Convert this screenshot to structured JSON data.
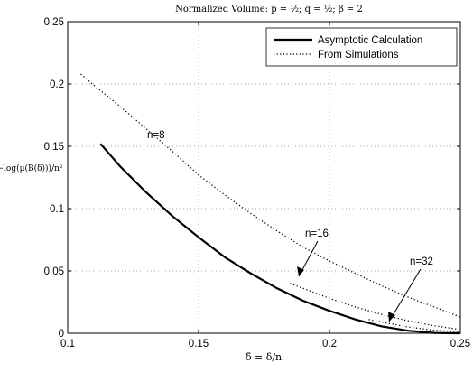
{
  "chart_data": {
    "type": "line",
    "title": "Normalized Volume: p̄ = ½; q̄ = ½; β = 2",
    "xlabel": "δ̄ = δ/n",
    "ylabel": "−log(μ(B(δ)))/n²",
    "xlim": [
      0.1,
      0.25
    ],
    "ylim": [
      0,
      0.25
    ],
    "xticks": [
      "0.1",
      "0.15",
      "0.2",
      "0.25"
    ],
    "yticks": [
      "0",
      "0.05",
      "0.1",
      "0.15",
      "0.2",
      "0.25"
    ],
    "grid": true,
    "legend_position": "top-right",
    "series": [
      {
        "name": "Asymptotic Calculation",
        "style": "solid",
        "color": "#000000",
        "x": [
          0.1125,
          0.12,
          0.13,
          0.14,
          0.15,
          0.16,
          0.17,
          0.18,
          0.19,
          0.2,
          0.21,
          0.22,
          0.23,
          0.24,
          0.245,
          0.25
        ],
        "y": [
          0.152,
          0.134,
          0.113,
          0.094,
          0.077,
          0.061,
          0.048,
          0.036,
          0.026,
          0.018,
          0.011,
          0.0055,
          0.002,
          0.0003,
          0.0001,
          0.0
        ]
      },
      {
        "name": "From Simulations",
        "curve_label": "n=8",
        "style": "dotted",
        "color": "#000000",
        "x": [
          0.105,
          0.11,
          0.12,
          0.13,
          0.14,
          0.15,
          0.16,
          0.17,
          0.18,
          0.19,
          0.2,
          0.21,
          0.22,
          0.23,
          0.24,
          0.25
        ],
        "y": [
          0.208,
          0.199,
          0.182,
          0.164,
          0.146,
          0.127,
          0.111,
          0.096,
          0.082,
          0.069,
          0.058,
          0.048,
          0.038,
          0.029,
          0.021,
          0.013
        ]
      },
      {
        "curve_label": "n=16",
        "style": "dotted",
        "color": "#000000",
        "x": [
          0.185,
          0.19,
          0.2,
          0.21,
          0.22,
          0.23,
          0.24,
          0.25
        ],
        "y": [
          0.04,
          0.036,
          0.028,
          0.021,
          0.015,
          0.01,
          0.006,
          0.003
        ]
      },
      {
        "curve_label": "n=32",
        "style": "dotted",
        "color": "#000000",
        "x": [
          0.215,
          0.22,
          0.23,
          0.24,
          0.25
        ],
        "y": [
          0.011,
          0.009,
          0.005,
          0.0025,
          0.001
        ]
      }
    ],
    "annotations": [
      {
        "text": "n=8"
      },
      {
        "text": "n=16"
      },
      {
        "text": "n=32"
      }
    ]
  }
}
